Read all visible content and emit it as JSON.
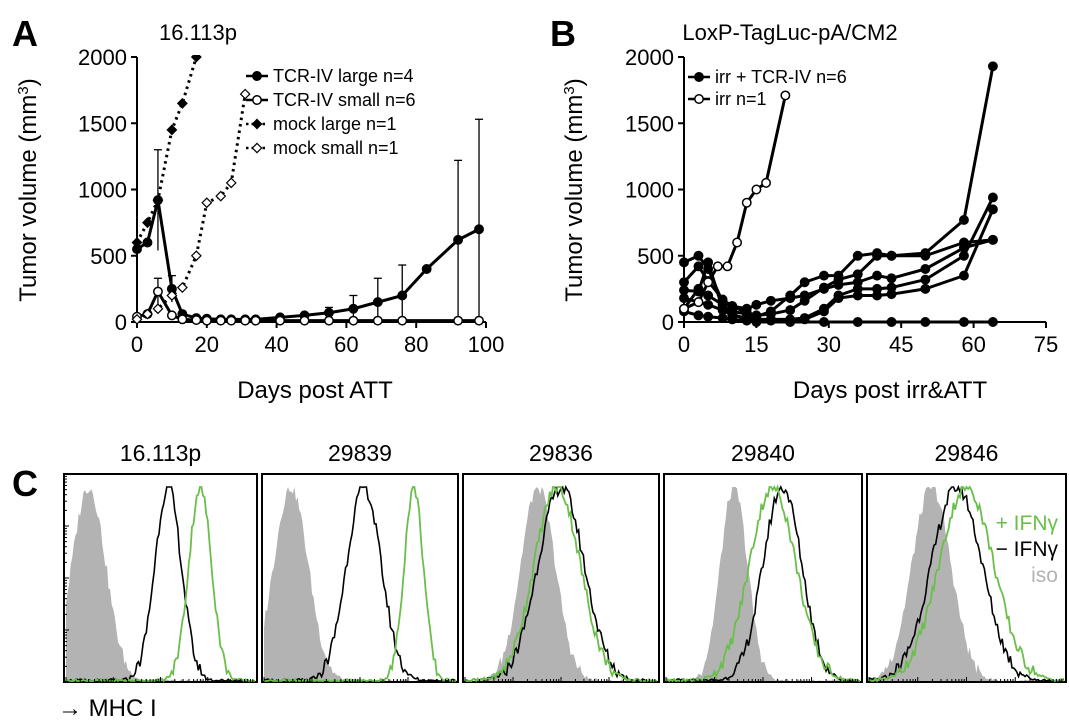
{
  "panel_labels": [
    "A",
    "B",
    "C"
  ],
  "colors": {
    "ink": "#000000",
    "green": "#6abf4b",
    "iso_fill": "#b3b3b3"
  },
  "chart_data": [
    {
      "type": "line",
      "panel": "A",
      "title": "16.113p",
      "xlabel": "Days post ATT",
      "ylabel_main": "Tumor volume (mm",
      "ylabel_sup": "3",
      "ylabel_end": ")",
      "xlim": [
        0,
        100
      ],
      "ylim": [
        0,
        2000
      ],
      "xticks": [
        0,
        20,
        40,
        60,
        80,
        100
      ],
      "yticks": [
        0,
        500,
        1000,
        1500,
        2000
      ],
      "legend_position": "top-right",
      "series": [
        {
          "name": "TCR-IV large n=4",
          "style": "solid",
          "marker": "filled-circle",
          "x": [
            0,
            3,
            6,
            10,
            13,
            17,
            20,
            24,
            27,
            31,
            34,
            41,
            48,
            55,
            62,
            69,
            76,
            83,
            92,
            98
          ],
          "y": [
            550,
            600,
            920,
            250,
            60,
            30,
            25,
            20,
            20,
            20,
            20,
            35,
            50,
            70,
            100,
            150,
            200,
            400,
            620,
            700
          ],
          "err": [
            0,
            0,
            380,
            100,
            0,
            0,
            0,
            0,
            0,
            0,
            0,
            0,
            0,
            40,
            100,
            180,
            230,
            0,
            600,
            830
          ]
        },
        {
          "name": "TCR-IV small n=6",
          "style": "solid",
          "marker": "open-circle",
          "x": [
            0,
            3,
            6,
            10,
            13,
            17,
            20,
            24,
            27,
            31,
            34,
            41,
            48,
            55,
            62,
            69,
            76,
            92,
            98
          ],
          "y": [
            40,
            60,
            230,
            50,
            20,
            15,
            10,
            10,
            10,
            10,
            10,
            10,
            10,
            10,
            10,
            10,
            10,
            10,
            10
          ],
          "err": [
            0,
            0,
            100,
            0,
            0,
            0,
            0,
            0,
            0,
            0,
            0,
            0,
            0,
            0,
            0,
            0,
            0,
            0,
            0
          ]
        },
        {
          "name": "mock large n=1",
          "style": "dotted",
          "marker": "filled-diamond",
          "x": [
            0,
            3,
            6,
            10,
            13,
            17
          ],
          "y": [
            600,
            750,
            920,
            1450,
            1650,
            2000
          ]
        },
        {
          "name": "mock small n=1",
          "style": "dotted",
          "marker": "open-diamond",
          "x": [
            0,
            3,
            6,
            10,
            13,
            17,
            20,
            24,
            27,
            31
          ],
          "y": [
            20,
            60,
            100,
            200,
            260,
            500,
            900,
            950,
            1050,
            1720
          ]
        }
      ]
    },
    {
      "type": "line",
      "panel": "B",
      "title": "LoxP-TagLuc-pA/CM2",
      "xlabel": "Days post irr&ATT",
      "ylabel_main": "Tumor volume (mm",
      "ylabel_sup": "3",
      "ylabel_end": ")",
      "xlim": [
        0,
        75
      ],
      "ylim": [
        0,
        2000
      ],
      "xticks": [
        0,
        15,
        30,
        45,
        60,
        75
      ],
      "yticks": [
        0,
        500,
        1000,
        1500,
        2000
      ],
      "legend_position": "top-left",
      "legend": [
        {
          "name": "irr + TCR-IV n=6",
          "marker": "filled-circle"
        },
        {
          "name": "irr n=1",
          "marker": "open-circle"
        }
      ],
      "series": [
        {
          "group": "irr + TCR-IV n=6",
          "marker": "filled-circle",
          "x": [
            0,
            3,
            5,
            8,
            10,
            13,
            15,
            18,
            22,
            25,
            29,
            32,
            36,
            40,
            43,
            50,
            58,
            64
          ],
          "y": [
            450,
            500,
            400,
            150,
            120,
            100,
            130,
            160,
            180,
            200,
            250,
            280,
            300,
            350,
            330,
            400,
            560,
            620
          ]
        },
        {
          "group": "irr + TCR-IV n=6",
          "marker": "filled-circle",
          "x": [
            0,
            3,
            5,
            8,
            10,
            13,
            15,
            18,
            22,
            25,
            29,
            32,
            36,
            40,
            43,
            50,
            58,
            64
          ],
          "y": [
            240,
            230,
            450,
            100,
            80,
            60,
            40,
            80,
            200,
            300,
            350,
            350,
            500,
            520,
            500,
            520,
            770,
            1930
          ]
        },
        {
          "group": "irr + TCR-IV n=6",
          "marker": "filled-circle",
          "x": [
            0,
            3,
            5,
            8,
            10,
            13,
            15,
            18,
            22,
            25,
            29,
            32,
            36,
            40,
            43,
            50,
            58,
            64
          ],
          "y": [
            180,
            150,
            130,
            90,
            50,
            30,
            20,
            20,
            20,
            30,
            100,
            200,
            250,
            250,
            260,
            320,
            500,
            940
          ]
        },
        {
          "group": "irr + TCR-IV n=6",
          "marker": "filled-circle",
          "x": [
            0,
            3,
            5,
            8,
            10,
            13,
            15,
            18,
            22,
            25,
            29,
            32,
            36,
            40,
            43,
            50,
            58,
            64
          ],
          "y": [
            100,
            250,
            200,
            130,
            60,
            20,
            10,
            10,
            10,
            20,
            80,
            180,
            200,
            200,
            210,
            250,
            350,
            850
          ]
        },
        {
          "group": "irr + TCR-IV n=6",
          "marker": "filled-circle",
          "x": [
            0,
            3,
            5,
            8,
            10,
            13,
            15,
            22,
            29,
            36,
            43,
            50,
            58,
            64
          ],
          "y": [
            80,
            50,
            40,
            30,
            20,
            10,
            0,
            0,
            0,
            0,
            0,
            0,
            0,
            0
          ]
        },
        {
          "group": "irr + TCR-IV n=6",
          "marker": "filled-circle",
          "x": [
            0,
            3,
            5,
            8,
            10,
            13,
            15,
            18,
            22,
            25,
            29,
            32,
            36,
            40,
            43,
            50,
            58,
            64
          ],
          "y": [
            300,
            420,
            310,
            170,
            120,
            70,
            50,
            60,
            90,
            160,
            260,
            320,
            360,
            500,
            500,
            500,
            600,
            620
          ]
        },
        {
          "group": "irr n=1",
          "marker": "open-circle",
          "x": [
            0,
            3,
            5,
            7,
            9,
            11,
            13,
            15,
            17,
            21
          ],
          "y": [
            100,
            150,
            300,
            420,
            420,
            600,
            900,
            1000,
            1050,
            1710
          ]
        }
      ]
    },
    {
      "type": "histogram",
      "panel": "C",
      "xlabel": "→ MHC I",
      "legend": [
        {
          "name": "+ IFNγ",
          "color": "#6abf4b"
        },
        {
          "name": "− IFNγ",
          "color": "#000000"
        },
        {
          "name": "iso",
          "color": "#b3b3b3"
        }
      ],
      "x_scale": "log",
      "panels": [
        {
          "title": "16.113p",
          "iso": [
            0.12,
            0.09,
            1.0
          ],
          "minus": [
            0.54,
            0.07,
            1.0
          ],
          "plus": [
            0.71,
            0.06,
            1.0
          ]
        },
        {
          "title": "29839",
          "iso": [
            0.14,
            0.09,
            1.0
          ],
          "minus": [
            0.52,
            0.09,
            1.0
          ],
          "plus": [
            0.78,
            0.05,
            1.0
          ]
        },
        {
          "title": "29836",
          "iso": [
            0.38,
            0.09,
            1.0
          ],
          "minus": [
            0.5,
            0.12,
            1.0
          ],
          "plus": [
            0.48,
            0.12,
            1.0
          ]
        },
        {
          "title": "29840",
          "iso": [
            0.35,
            0.07,
            1.0
          ],
          "minus": [
            0.6,
            0.1,
            1.0
          ],
          "plus": [
            0.55,
            0.12,
            1.0
          ]
        },
        {
          "title": "29846",
          "iso": [
            0.32,
            0.1,
            1.0
          ],
          "minus": [
            0.45,
            0.13,
            1.0
          ],
          "plus": [
            0.5,
            0.14,
            1.0
          ]
        }
      ]
    }
  ]
}
